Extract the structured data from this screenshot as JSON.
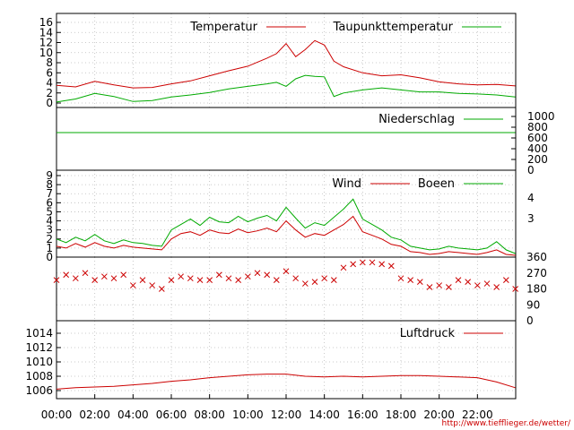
{
  "chart_data": [
    {
      "type": "line",
      "panel": "temperature",
      "ylim": [
        -1,
        17
      ],
      "yticks": [
        "0",
        "2",
        "4",
        "6",
        "8",
        "10",
        "12",
        "14",
        "16"
      ],
      "legend_position": "top",
      "grid": true,
      "x": [
        "00:00",
        "01:00",
        "02:00",
        "03:00",
        "04:00",
        "05:00",
        "06:00",
        "07:00",
        "08:00",
        "09:00",
        "10:00",
        "11:00",
        "11:30",
        "12:00",
        "12:30",
        "13:00",
        "13:30",
        "14:00",
        "14:30",
        "15:00",
        "16:00",
        "17:00",
        "18:00",
        "19:00",
        "20:00",
        "21:00",
        "22:00",
        "23:00",
        "23:59"
      ],
      "series": [
        {
          "name": "Temperatur",
          "color": "#cc0000",
          "values": [
            3.5,
            3.2,
            4.3,
            3.6,
            3.0,
            3.1,
            3.8,
            4.4,
            5.4,
            6.4,
            7.3,
            8.9,
            9.8,
            11.8,
            9.2,
            10.6,
            12.4,
            11.5,
            8.3,
            7.2,
            6.0,
            5.4,
            5.6,
            5.0,
            4.2,
            3.8,
            3.6,
            3.7,
            3.4
          ]
        },
        {
          "name": "Taupunkttemperatur",
          "color": "#00aa00",
          "values": [
            0.2,
            0.8,
            1.9,
            1.3,
            0.3,
            0.5,
            1.2,
            1.6,
            2.1,
            2.8,
            3.3,
            3.8,
            4.1,
            3.3,
            4.8,
            5.5,
            5.3,
            5.2,
            1.3,
            2.0,
            2.6,
            3.0,
            2.6,
            2.2,
            2.2,
            1.9,
            1.8,
            1.6,
            1.2
          ]
        }
      ]
    },
    {
      "type": "line",
      "panel": "precipitation",
      "ylim": [
        0,
        1100
      ],
      "yticks": [
        "0",
        "200",
        "400",
        "600",
        "800",
        "1000"
      ],
      "legend_position": "top",
      "grid": false,
      "x": [
        "00:00",
        "23:59"
      ],
      "series": [
        {
          "name": "Niederschlag",
          "color": "#00aa00",
          "values": [
            700,
            700
          ]
        }
      ]
    },
    {
      "type": "line",
      "panel": "wind",
      "ylim": [
        0,
        9
      ],
      "yticks": [
        "0",
        "1",
        "2",
        "3",
        "4",
        "5",
        "6",
        "7",
        "8",
        "9"
      ],
      "right_ticks": [
        "3",
        "4"
      ],
      "legend_position": "top",
      "grid": true,
      "x": [
        "00:00",
        "00:30",
        "01:00",
        "01:30",
        "02:00",
        "02:30",
        "03:00",
        "03:30",
        "04:00",
        "04:30",
        "05:00",
        "05:30",
        "06:00",
        "06:30",
        "07:00",
        "07:30",
        "08:00",
        "08:30",
        "09:00",
        "09:30",
        "10:00",
        "10:30",
        "11:00",
        "11:30",
        "12:00",
        "12:30",
        "13:00",
        "13:30",
        "14:00",
        "14:30",
        "15:00",
        "15:30",
        "16:00",
        "16:30",
        "17:00",
        "17:30",
        "18:00",
        "18:30",
        "19:00",
        "19:30",
        "20:00",
        "20:30",
        "21:00",
        "21:30",
        "22:00",
        "22:30",
        "23:00",
        "23:30",
        "23:59"
      ],
      "series": [
        {
          "name": "Wind",
          "color": "#cc0000",
          "values": [
            1.2,
            1.0,
            1.5,
            1.1,
            1.6,
            1.2,
            1.0,
            1.3,
            1.1,
            1.0,
            0.9,
            0.8,
            2.0,
            2.6,
            2.8,
            2.4,
            3.0,
            2.7,
            2.6,
            3.1,
            2.7,
            2.9,
            3.2,
            2.8,
            4.0,
            3.0,
            2.2,
            2.6,
            2.4,
            3.0,
            3.6,
            4.5,
            2.8,
            2.4,
            2.0,
            1.4,
            1.2,
            0.6,
            0.5,
            0.3,
            0.4,
            0.6,
            0.5,
            0.4,
            0.3,
            0.5,
            0.8,
            0.3,
            0.2
          ]
        },
        {
          "name": "Boeen",
          "color": "#00aa00",
          "values": [
            2.0,
            1.6,
            2.2,
            1.8,
            2.5,
            1.8,
            1.5,
            1.9,
            1.6,
            1.5,
            1.3,
            1.2,
            3.0,
            3.6,
            4.2,
            3.5,
            4.4,
            3.9,
            3.8,
            4.5,
            3.9,
            4.3,
            4.6,
            4.0,
            5.5,
            4.3,
            3.2,
            3.8,
            3.5,
            4.4,
            5.3,
            6.4,
            4.2,
            3.6,
            3.0,
            2.2,
            1.9,
            1.2,
            1.0,
            0.8,
            0.9,
            1.2,
            1.0,
            0.9,
            0.8,
            1.0,
            1.7,
            0.8,
            0.4
          ]
        }
      ]
    },
    {
      "type": "scatter",
      "panel": "wind-direction",
      "ylim": [
        0,
        360
      ],
      "yticks_right": [
        "0",
        "90",
        "180",
        "270",
        "360"
      ],
      "marker": "x",
      "color": "#cc0000",
      "grid": true,
      "x": [
        "00:00",
        "00:30",
        "01:00",
        "01:30",
        "02:00",
        "02:30",
        "03:00",
        "03:30",
        "04:00",
        "04:30",
        "05:00",
        "05:30",
        "06:00",
        "06:30",
        "07:00",
        "07:30",
        "08:00",
        "08:30",
        "09:00",
        "09:30",
        "10:00",
        "10:30",
        "11:00",
        "11:30",
        "12:00",
        "12:30",
        "13:00",
        "13:30",
        "14:00",
        "14:30",
        "15:00",
        "15:30",
        "16:00",
        "16:30",
        "17:00",
        "17:30",
        "18:00",
        "18:30",
        "19:00",
        "19:30",
        "20:00",
        "20:30",
        "21:00",
        "21:30",
        "22:00",
        "22:30",
        "23:00",
        "23:30",
        "23:59"
      ],
      "values": [
        230,
        260,
        240,
        270,
        230,
        250,
        240,
        260,
        200,
        230,
        200,
        180,
        230,
        250,
        240,
        230,
        230,
        260,
        240,
        230,
        250,
        270,
        260,
        230,
        280,
        240,
        210,
        220,
        240,
        230,
        300,
        320,
        330,
        330,
        320,
        310,
        240,
        230,
        220,
        190,
        200,
        190,
        230,
        220,
        200,
        210,
        190,
        230,
        180
      ]
    },
    {
      "type": "line",
      "panel": "pressure",
      "ylim": [
        1005.2,
        1015.5
      ],
      "yticks": [
        "1006",
        "1008",
        "1010",
        "1012",
        "1014"
      ],
      "legend_position": "top-right",
      "grid": true,
      "x": [
        "00:00",
        "01:00",
        "02:00",
        "03:00",
        "04:00",
        "05:00",
        "06:00",
        "07:00",
        "08:00",
        "09:00",
        "10:00",
        "11:00",
        "12:00",
        "13:00",
        "14:00",
        "15:00",
        "16:00",
        "17:00",
        "18:00",
        "19:00",
        "20:00",
        "21:00",
        "22:00",
        "23:00",
        "23:59"
      ],
      "series": [
        {
          "name": "Luftdruck",
          "color": "#cc0000",
          "values": [
            1006.2,
            1006.4,
            1006.5,
            1006.6,
            1006.8,
            1007.0,
            1007.3,
            1007.5,
            1007.8,
            1008.0,
            1008.2,
            1008.3,
            1008.3,
            1008.0,
            1007.9,
            1008.0,
            1007.9,
            1008.0,
            1008.1,
            1008.1,
            1008.0,
            1007.9,
            1007.8,
            1007.2,
            1006.4
          ]
        }
      ]
    }
  ],
  "x_axis": {
    "ticks": [
      "00:00",
      "02:00",
      "04:00",
      "06:00",
      "08:00",
      "10:00",
      "12:00",
      "14:00",
      "16:00",
      "18:00",
      "20:00",
      "22:00"
    ]
  },
  "credit": "http://www.tiefflieger.de/wetter/"
}
